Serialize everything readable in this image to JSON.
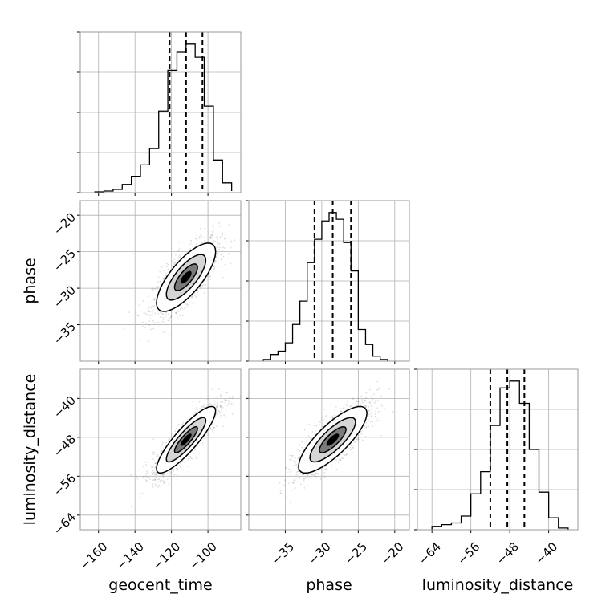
{
  "chart_data": {
    "type": "corner",
    "parameters": [
      "geocent_time",
      "phase",
      "luminosity_distance"
    ],
    "ranges": {
      "geocent_time": [
        -170,
        -82
      ],
      "phase": [
        -40,
        -18
      ],
      "luminosity_distance": [
        -67,
        -34
      ]
    },
    "ticks": {
      "geocent_time": [
        -160,
        -140,
        -120,
        -100
      ],
      "phase": [
        -35,
        -30,
        -25,
        -20
      ],
      "luminosity_distance": [
        -64,
        -56,
        -48,
        -40
      ]
    },
    "tick_labels": {
      "geocent_time": [
        "−160",
        "−140",
        "−120",
        "−100"
      ],
      "phase": [
        "−35",
        "−30",
        "−25",
        "−20"
      ],
      "luminosity_distance": [
        "−64",
        "−56",
        "−48",
        "−40"
      ]
    },
    "grid": true,
    "marginals": {
      "geocent_time": {
        "bin_edges": [
          -162,
          -157,
          -152,
          -147,
          -142,
          -137,
          -132,
          -127,
          -122,
          -117,
          -112,
          -107,
          -102,
          -97,
          -92,
          -87
        ],
        "counts": [
          0.005,
          0.01,
          0.02,
          0.05,
          0.1,
          0.17,
          0.27,
          0.5,
          0.75,
          0.86,
          0.91,
          0.83,
          0.53,
          0.2,
          0.06,
          0.01
        ],
        "quantiles": [
          -121,
          -112,
          -103
        ]
      },
      "phase": {
        "bin_edges": [
          -38,
          -37,
          -36,
          -35,
          -34,
          -33,
          -32,
          -31,
          -30,
          -29,
          -28,
          -27,
          -26,
          -25,
          -24,
          -23,
          -22,
          -21
        ],
        "counts": [
          0.01,
          0.04,
          0.06,
          0.11,
          0.22,
          0.36,
          0.59,
          0.73,
          0.84,
          0.89,
          0.85,
          0.71,
          0.54,
          0.19,
          0.1,
          0.03,
          0.01
        ],
        "quantiles": [
          -31,
          -28.5,
          -26
        ]
      },
      "luminosity_distance": {
        "bin_edges": [
          -64,
          -62,
          -60,
          -58,
          -56,
          -54,
          -52,
          -50,
          -48,
          -46,
          -44,
          -42,
          -40,
          -38,
          -36
        ],
        "counts": [
          0.02,
          0.03,
          0.04,
          0.08,
          0.21,
          0.34,
          0.61,
          0.83,
          0.87,
          0.74,
          0.47,
          0.22,
          0.07,
          0.01
        ],
        "quantiles": [
          -52,
          -48.5,
          -45
        ]
      }
    },
    "joints": [
      {
        "x": "geocent_time",
        "y": "phase",
        "center": [
          -112,
          -28.5
        ],
        "std": [
          9,
          2.6
        ],
        "corr": 0.75
      },
      {
        "x": "geocent_time",
        "y": "luminosity_distance",
        "center": [
          -112,
          -48.5
        ],
        "std": [
          9,
          3.8
        ],
        "corr": 0.87
      },
      {
        "x": "phase",
        "y": "luminosity_distance",
        "center": [
          -28.5,
          -48.5
        ],
        "std": [
          2.6,
          3.8
        ],
        "corr": 0.8
      }
    ],
    "density_levels": {
      "fills": [
        "#ffffff",
        "#d6d6d6",
        "#7a7a7a",
        "#000000"
      ]
    }
  }
}
